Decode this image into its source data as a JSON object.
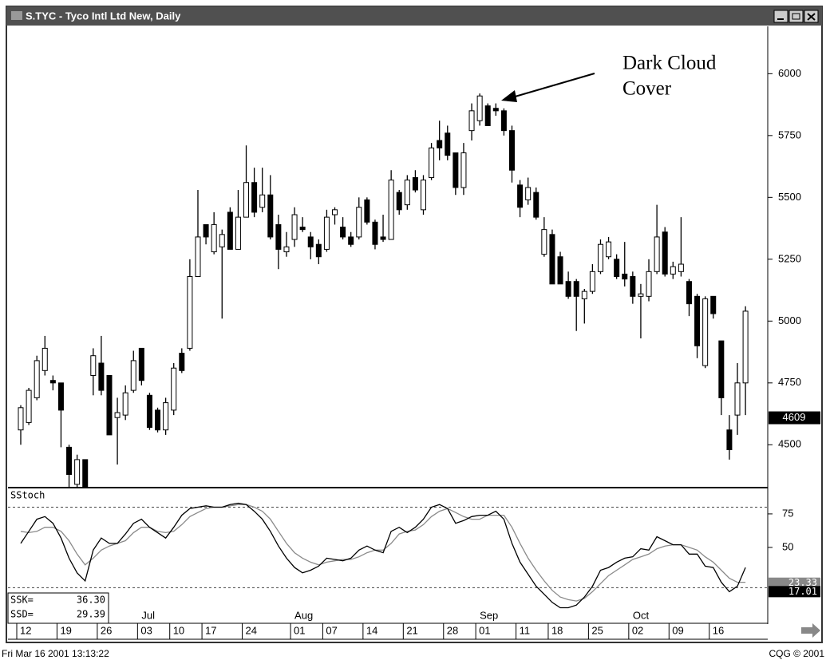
{
  "window": {
    "title": "S.TYC - Tyco Intl Ltd New, Daily"
  },
  "chart_data": [
    {
      "type": "candlestick",
      "categories": [
        "12",
        null,
        null,
        null,
        null,
        "19",
        null,
        null,
        null,
        null,
        "26",
        null,
        null,
        null,
        null,
        "03",
        null,
        null,
        null,
        "10",
        null,
        null,
        null,
        "17",
        null,
        null,
        null,
        null,
        "24",
        null,
        null,
        null,
        null,
        null,
        "01",
        null,
        null,
        null,
        "07",
        null,
        null,
        null,
        null,
        "14",
        null,
        null,
        null,
        null,
        "21",
        null,
        null,
        null,
        null,
        "28",
        null,
        null,
        null,
        "01",
        null,
        null,
        null,
        null,
        "11",
        null,
        null,
        null,
        "18",
        null,
        null,
        null,
        null,
        "25",
        null,
        null,
        null,
        null,
        "02",
        null,
        null,
        null,
        null,
        "09",
        null,
        null,
        null,
        null,
        "16",
        null,
        null,
        null,
        null
      ],
      "months": [
        null,
        null,
        null,
        null,
        null,
        null,
        null,
        null,
        null,
        null,
        null,
        null,
        null,
        null,
        null,
        "Jul",
        null,
        null,
        null,
        null,
        null,
        null,
        null,
        null,
        null,
        null,
        null,
        null,
        null,
        null,
        null,
        null,
        null,
        null,
        "Aug",
        null,
        null,
        null,
        null,
        null,
        null,
        null,
        null,
        null,
        null,
        null,
        null,
        null,
        null,
        null,
        null,
        null,
        null,
        null,
        null,
        null,
        null,
        "Sep",
        null,
        null,
        null,
        null,
        null,
        null,
        null,
        null,
        null,
        null,
        null,
        null,
        null,
        null,
        null,
        null,
        null,
        null,
        "Oct",
        null,
        null,
        null,
        null,
        null,
        null,
        null,
        null,
        null,
        null,
        null,
        null,
        null,
        null
      ],
      "open": [
        4560,
        4590,
        4690,
        4800,
        4760,
        4750,
        4490,
        4340,
        4440,
        4780,
        4830,
        4780,
        4610,
        4620,
        4720,
        4890,
        4700,
        4640,
        4560,
        4640,
        4870,
        4890,
        5180,
        5390,
        5280,
        5300,
        5440,
        5290,
        5420,
        5560,
        5460,
        5510,
        5390,
        5280,
        5330,
        5380,
        5340,
        5310,
        5290,
        5430,
        5380,
        5340,
        5340,
        5490,
        5400,
        5340,
        5330,
        5520,
        5470,
        5580,
        5450,
        5580,
        5730,
        5760,
        5680,
        5540,
        5770,
        5810,
        5870,
        5860,
        5850,
        5770,
        5550,
        5490,
        5520,
        5270,
        5350,
        5260,
        5160,
        5160,
        5090,
        5120,
        5200,
        5260,
        5250,
        5190,
        5180,
        5100,
        5100,
        5200,
        5360,
        5190,
        5200,
        5160,
        5100,
        4820,
        5100,
        4920,
        4560,
        4620,
        4750
      ],
      "high": [
        4660,
        4730,
        4860,
        4940,
        4780,
        4750,
        4500,
        4460,
        4440,
        4890,
        4940,
        4780,
        4690,
        4740,
        4880,
        4890,
        4710,
        4650,
        4690,
        4830,
        4890,
        5250,
        5530,
        5390,
        5440,
        5370,
        5460,
        5530,
        5710,
        5620,
        5620,
        5590,
        5430,
        5360,
        5460,
        5420,
        5360,
        5330,
        5450,
        5460,
        5420,
        5360,
        5500,
        5500,
        5410,
        5430,
        5610,
        5530,
        5590,
        5610,
        5590,
        5720,
        5810,
        5790,
        5680,
        5720,
        5880,
        5920,
        5880,
        5880,
        5860,
        5790,
        5570,
        5580,
        5540,
        5420,
        5370,
        5280,
        5200,
        5170,
        5130,
        5230,
        5330,
        5340,
        5270,
        5320,
        5200,
        5150,
        5250,
        5470,
        5380,
        5240,
        5420,
        5170,
        5110,
        5100,
        5100,
        4920,
        4620,
        4830,
        5060
      ],
      "low": [
        4500,
        4580,
        4680,
        4780,
        4720,
        4490,
        4330,
        4330,
        4330,
        4700,
        4700,
        4540,
        4420,
        4600,
        4710,
        4740,
        4560,
        4550,
        4540,
        4620,
        4790,
        4880,
        5180,
        5310,
        5270,
        5010,
        5290,
        5290,
        5420,
        5420,
        5440,
        5330,
        5210,
        5260,
        5300,
        5360,
        5250,
        5230,
        5280,
        5390,
        5330,
        5300,
        5330,
        5390,
        5290,
        5320,
        5330,
        5430,
        5450,
        5520,
        5430,
        5570,
        5650,
        5650,
        5510,
        5510,
        5730,
        5790,
        5790,
        5830,
        5750,
        5560,
        5420,
        5470,
        5410,
        5260,
        5150,
        5150,
        5090,
        4960,
        4990,
        5110,
        5190,
        5250,
        5170,
        5140,
        5070,
        4930,
        5080,
        5190,
        5180,
        5170,
        5180,
        5020,
        4850,
        4810,
        5010,
        4620,
        4440,
        4540,
        4620
      ],
      "close": [
        4650,
        4720,
        4840,
        4890,
        4750,
        4640,
        4380,
        4440,
        4330,
        4860,
        4720,
        4540,
        4630,
        4710,
        4840,
        4760,
        4570,
        4560,
        4670,
        4810,
        4800,
        5180,
        5340,
        5340,
        5390,
        5350,
        5290,
        5420,
        5560,
        5440,
        5510,
        5340,
        5290,
        5300,
        5430,
        5370,
        5300,
        5260,
        5420,
        5450,
        5340,
        5310,
        5460,
        5400,
        5310,
        5330,
        5570,
        5450,
        5570,
        5530,
        5570,
        5700,
        5700,
        5670,
        5540,
        5680,
        5850,
        5910,
        5790,
        5850,
        5770,
        5610,
        5460,
        5540,
        5420,
        5370,
        5150,
        5150,
        5100,
        5100,
        5120,
        5200,
        5310,
        5320,
        5180,
        5170,
        5100,
        5110,
        5200,
        5340,
        5190,
        5220,
        5230,
        5070,
        4900,
        5090,
        5030,
        4690,
        4480,
        4750,
        5040
      ],
      "up_color": "#ffffff",
      "down_color": "#000000",
      "ylim": [
        4330,
        6185
      ],
      "yticks": [
        4500,
        4750,
        5000,
        5250,
        5500,
        5750,
        6000
      ],
      "last_price": 4609,
      "annotation": [
        "Dark Cloud",
        "Cover"
      ]
    },
    {
      "type": "line",
      "title": "SStoch",
      "series": [
        {
          "color": "#000000",
          "values": [
            53,
            62,
            71,
            73,
            68,
            57,
            42,
            31,
            25,
            48,
            57,
            53,
            53,
            60,
            68,
            71,
            65,
            61,
            57,
            65,
            74,
            79,
            80,
            81,
            80,
            80,
            82,
            83,
            82,
            77,
            71,
            62,
            51,
            42,
            35,
            31,
            33,
            36,
            42,
            41,
            40,
            42,
            48,
            51,
            48,
            46,
            62,
            65,
            61,
            65,
            71,
            80,
            82,
            79,
            68,
            70,
            73,
            74,
            74,
            77,
            71,
            53,
            39,
            30,
            21,
            15,
            9,
            5,
            5,
            7,
            13,
            21,
            33,
            35,
            39,
            42,
            43,
            49,
            48,
            58,
            55,
            52,
            52,
            45,
            45,
            36,
            35,
            24,
            17,
            21,
            35
          ]
        },
        {
          "color": "#8a8a8a",
          "values": [
            62,
            61,
            62,
            65,
            65,
            62,
            55,
            45,
            37,
            42,
            48,
            51,
            53,
            55,
            61,
            65,
            65,
            62,
            61,
            62,
            67,
            73,
            76,
            79,
            80,
            80,
            81,
            82,
            82,
            80,
            77,
            71,
            62,
            53,
            46,
            42,
            39,
            37,
            39,
            40,
            41,
            41,
            43,
            46,
            48,
            48,
            53,
            60,
            62,
            63,
            67,
            73,
            77,
            79,
            76,
            73,
            71,
            71,
            74,
            74,
            74,
            65,
            53,
            42,
            33,
            25,
            18,
            13,
            11,
            10,
            12,
            17,
            23,
            29,
            33,
            37,
            41,
            43,
            45,
            49,
            51,
            52,
            52,
            50,
            48,
            43,
            39,
            33,
            27,
            24,
            24
          ]
        }
      ],
      "ylim": [
        -6,
        94
      ],
      "yticks": [
        50,
        75
      ],
      "levels": [
        20,
        80
      ],
      "readouts": [
        {
          "name": "SSK=",
          "value": 36.3,
          "label": "36.30"
        },
        {
          "name": "SSD=",
          "value": 29.39,
          "label": "29.39"
        }
      ],
      "last_values": [
        23.33,
        17.01
      ]
    }
  ],
  "footer": {
    "timestamp": "Fri Mar 16 2001 13:13:22",
    "copyright": "CQG © 2001"
  }
}
